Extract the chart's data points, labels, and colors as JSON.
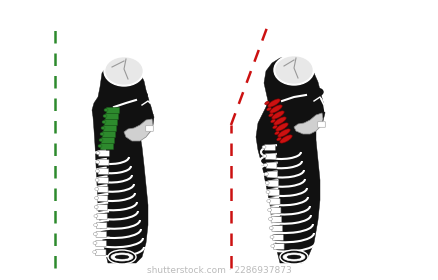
{
  "bg_color": "#ffffff",
  "sk": "#111111",
  "wh": "#ffffff",
  "gr": "#2d8a2d",
  "rd": "#cc1111",
  "gr_line": "#2d8a2d",
  "rd_line": "#cc1111",
  "watermark": "shutterstock.com · 2286937873",
  "wm_color": "#bbbbbb",
  "wm_size": 6.5
}
